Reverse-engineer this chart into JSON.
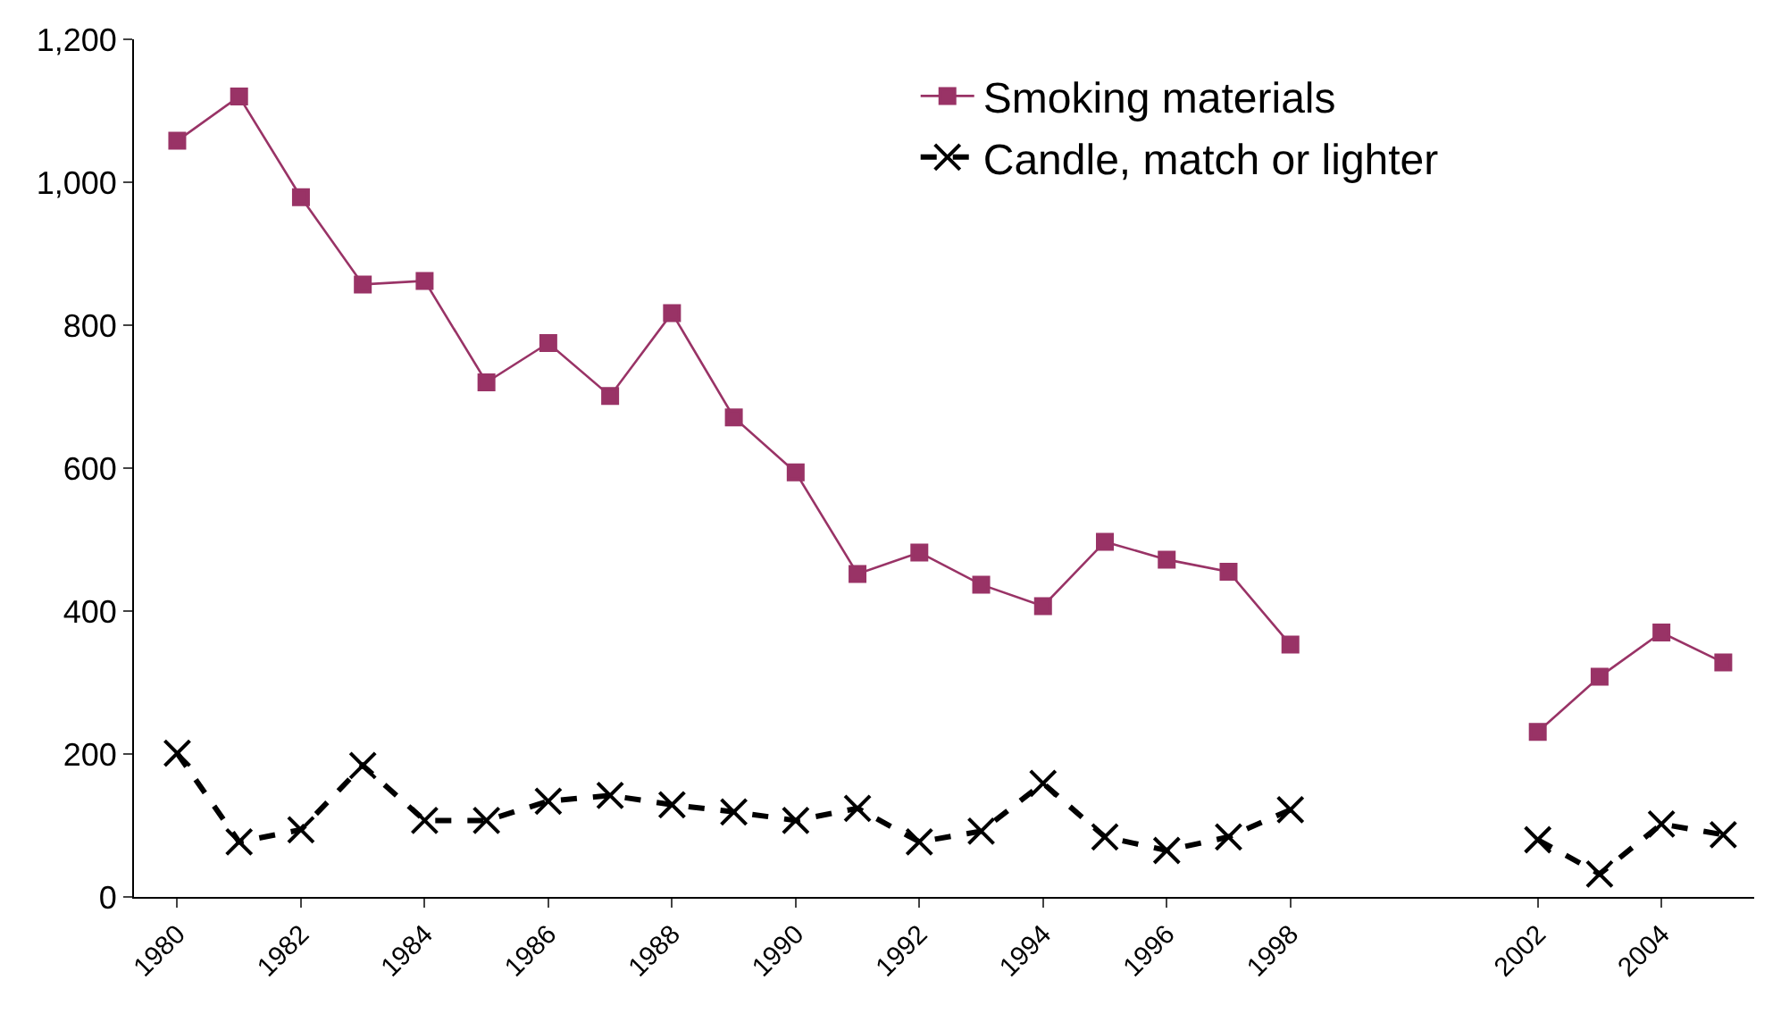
{
  "chart_data": {
    "type": "line",
    "categories": [
      "1980",
      null,
      "1982",
      null,
      "1984",
      null,
      "1986",
      null,
      "1988",
      null,
      "1990",
      null,
      "1992",
      null,
      "1994",
      null,
      "1996",
      null,
      "1998",
      null,
      null,
      null,
      "2002",
      null,
      "2004",
      null
    ],
    "series": [
      {
        "name": "Smoking materials",
        "color": "#993366",
        "marker": "square",
        "line_style": "solid",
        "values": [
          1058,
          1120,
          979,
          857,
          862,
          720,
          775,
          701,
          817,
          671,
          594,
          452,
          482,
          437,
          407,
          497,
          472,
          455,
          353,
          null,
          null,
          null,
          231,
          308,
          370,
          328
        ]
      },
      {
        "name": "Candle, match or lighter",
        "color": "#000000",
        "marker": "cross",
        "line_style": "dashed",
        "values": [
          201,
          77,
          94,
          184,
          107,
          107,
          134,
          142,
          129,
          119,
          107,
          124,
          77,
          92,
          159,
          84,
          65,
          84,
          122,
          null,
          null,
          null,
          80,
          32,
          102,
          87
        ]
      }
    ],
    "ylim": [
      0,
      1200
    ],
    "yticks": [
      0,
      {
        "value": 200,
        "label": "200"
      },
      {
        "value": 400,
        "label": "400"
      },
      {
        "value": 600,
        "label": "600"
      },
      {
        "value": 800,
        "label": "800"
      },
      {
        "value": 1000,
        "label": "1,000"
      },
      {
        "value": 1200,
        "label": "1,200"
      }
    ],
    "legend": "top right"
  }
}
